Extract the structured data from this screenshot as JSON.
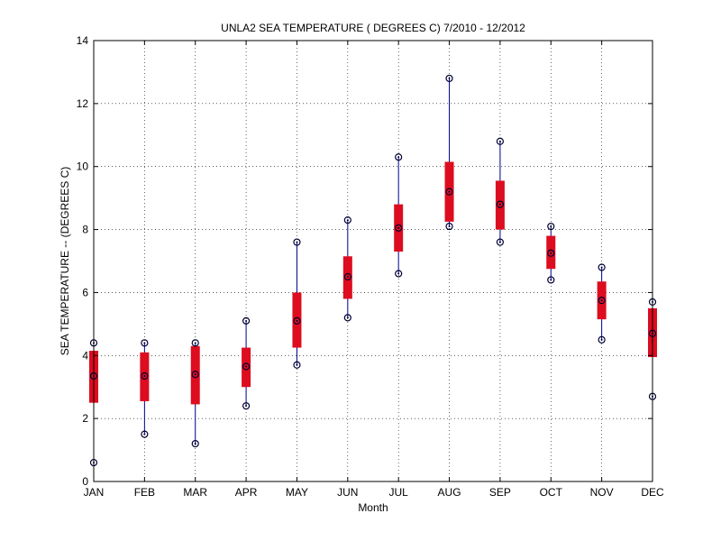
{
  "chart_data": {
    "type": "boxplot",
    "title": "UNLA2  SEA TEMPERATURE ( DEGREES C) 7/2010 - 12/2012",
    "xlabel": "Month",
    "ylabel": "SEA TEMPERATURE -- (DEGREES C)",
    "ylim": [
      0,
      14
    ],
    "yticks": [
      "0",
      "2",
      "4",
      "6",
      "8",
      "10",
      "12",
      "14"
    ],
    "grid": true,
    "categories": [
      "JAN",
      "FEB",
      "MAR",
      "APR",
      "MAY",
      "JUN",
      "JUL",
      "AUG",
      "SEP",
      "OCT",
      "NOV",
      "DEC"
    ],
    "series": [
      {
        "stat": "min",
        "values": [
          0.6,
          1.5,
          1.2,
          2.4,
          3.7,
          5.2,
          6.6,
          8.1,
          7.6,
          6.4,
          4.5,
          2.7
        ]
      },
      {
        "stat": "q1",
        "values": [
          2.5,
          2.55,
          2.45,
          3.0,
          4.25,
          5.8,
          7.3,
          8.25,
          8.0,
          6.75,
          5.15,
          3.95
        ]
      },
      {
        "stat": "median",
        "values": [
          3.35,
          3.35,
          3.4,
          3.65,
          5.1,
          6.5,
          8.05,
          9.2,
          8.8,
          7.25,
          5.75,
          4.7
        ]
      },
      {
        "stat": "q3",
        "values": [
          4.15,
          4.1,
          4.3,
          4.25,
          6.0,
          7.15,
          8.8,
          10.15,
          9.55,
          7.8,
          6.35,
          5.5
        ]
      },
      {
        "stat": "max",
        "values": [
          4.4,
          4.4,
          4.4,
          5.1,
          7.6,
          8.3,
          10.3,
          12.8,
          10.8,
          8.1,
          6.8,
          5.7
        ]
      }
    ],
    "colors": {
      "box": "#dd0c1f",
      "whisker": "#00008b",
      "marker": "#000033",
      "grid": "#000000"
    }
  }
}
